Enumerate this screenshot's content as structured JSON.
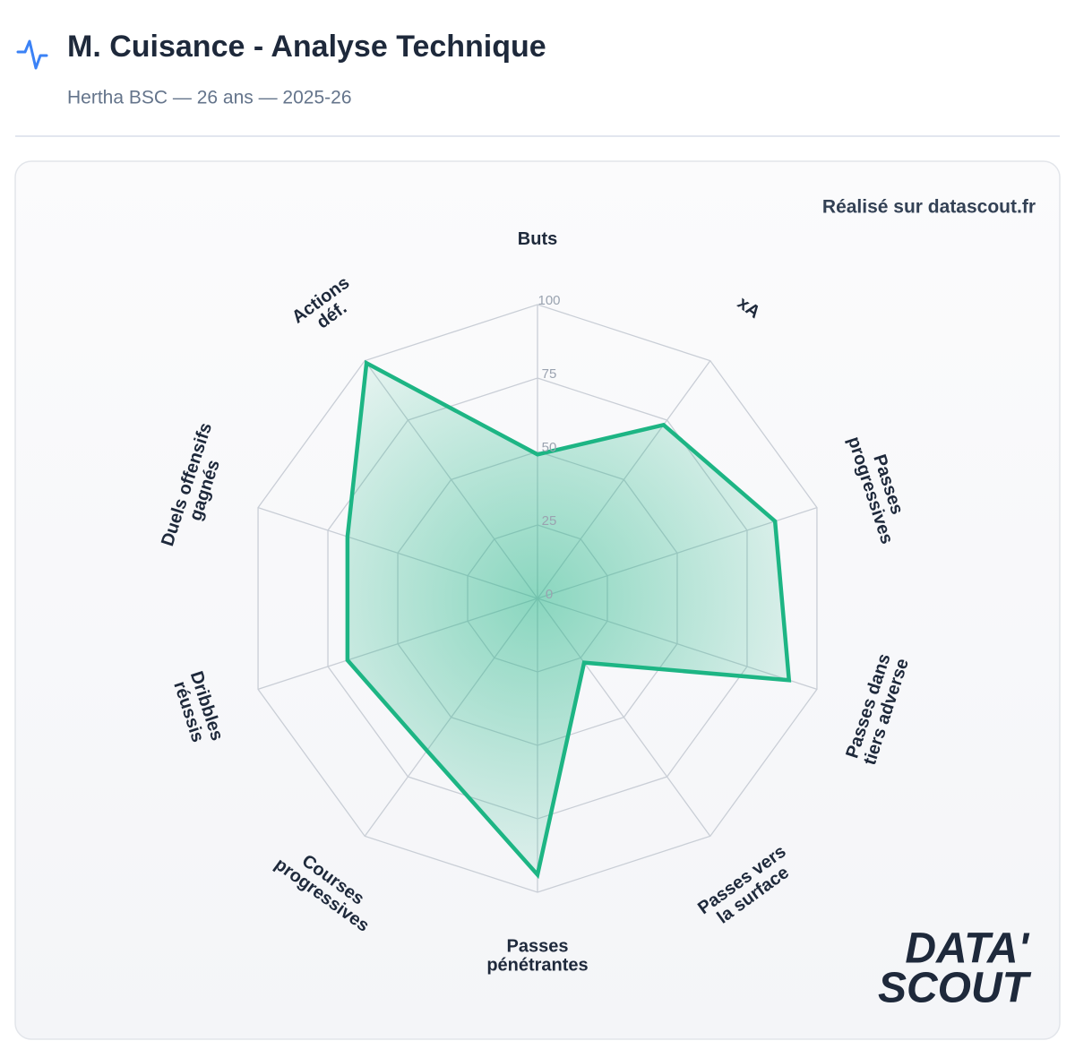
{
  "header": {
    "title": "M. Cuisance - Analyse Technique",
    "subtitle": "Hertha BSC — 26 ans — 2025-26"
  },
  "credit": "Réalisé sur datascout.fr",
  "logo": [
    "DATA'",
    "SCOUT"
  ],
  "chart_data": {
    "type": "radar",
    "categories": [
      [
        "Buts"
      ],
      [
        "xA"
      ],
      [
        "Passes",
        "progressives"
      ],
      [
        "Passes dans",
        "tiers adverse"
      ],
      [
        "Passes vers",
        "la surface"
      ],
      [
        "Passes",
        "pénétrantes"
      ],
      [
        "Courses",
        "progressives"
      ],
      [
        "Dribbles",
        "réussis"
      ],
      [
        "Duels offensifs",
        "gagnés"
      ],
      [
        "Actions",
        "déf."
      ]
    ],
    "values": [
      49,
      73,
      85,
      90,
      27,
      94,
      64,
      68,
      68,
      99
    ],
    "color": "#1db584",
    "rlim": [
      0,
      100
    ],
    "rticks": [
      0,
      25,
      50,
      75,
      100
    ],
    "grid": true
  }
}
